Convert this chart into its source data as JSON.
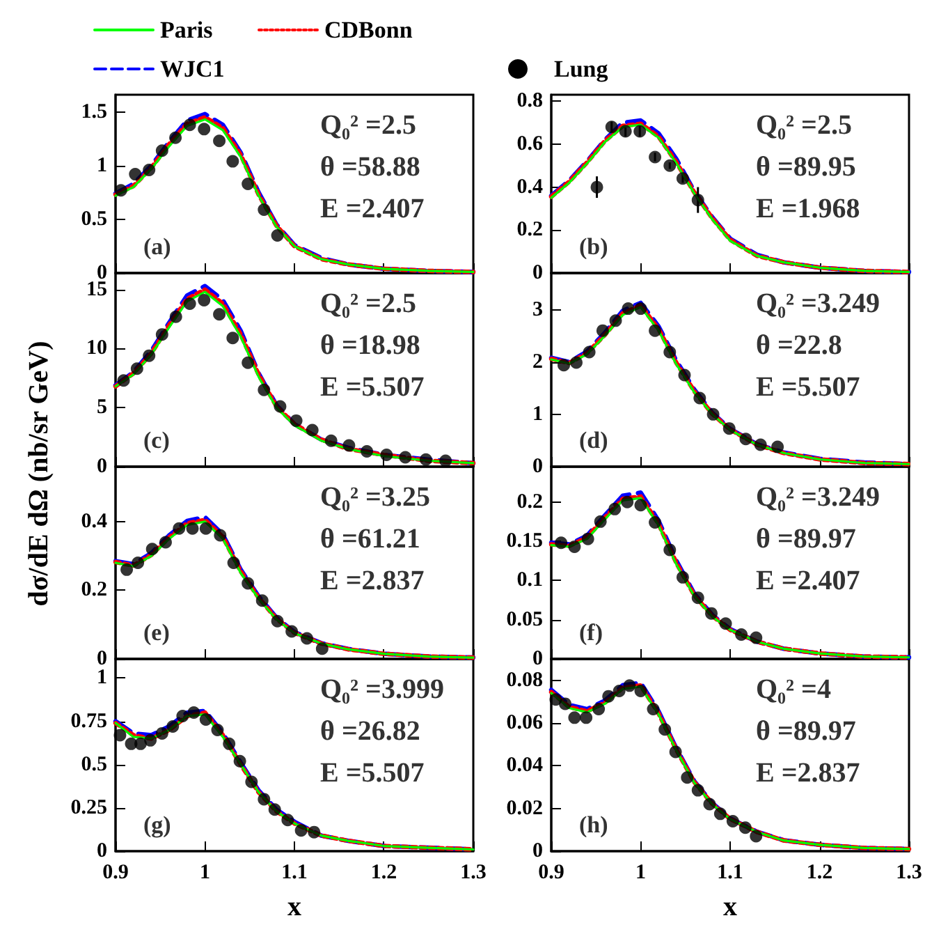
{
  "chart_data": [
    {
      "type": "line",
      "legend": "top",
      "tick_labels": "y",
      "xlim": [
        0.9,
        1.3
      ],
      "xticks": [
        0.9,
        1,
        1.1,
        1.2,
        1.3
      ],
      "ylim": [
        0,
        1.66
      ],
      "yticks": [
        0,
        0.5,
        1,
        1.5
      ],
      "annotations": [
        "(a)",
        "Q₀² =2.5",
        "θ =58.88",
        "E =2.407"
      ],
      "x": [
        0.9,
        0.92,
        0.94,
        0.96,
        0.98,
        1.0,
        1.02,
        1.04,
        1.06,
        1.08,
        1.1,
        1.13,
        1.16,
        1.2,
        1.25,
        1.3
      ],
      "series": [
        {
          "name": "Paris",
          "color": "#00ff00",
          "line_style": "solid",
          "marker": "none",
          "values": [
            0.72,
            0.8,
            0.97,
            1.18,
            1.37,
            1.43,
            1.33,
            1.08,
            0.72,
            0.43,
            0.25,
            0.13,
            0.08,
            0.04,
            0.02,
            0.01
          ]
        },
        {
          "name": "CDBonn",
          "color": "#ff0000",
          "line_style": "dotted",
          "marker": "none",
          "values": [
            0.73,
            0.81,
            0.98,
            1.2,
            1.39,
            1.45,
            1.35,
            1.1,
            0.73,
            0.44,
            0.25,
            0.13,
            0.08,
            0.04,
            0.02,
            0.01
          ]
        },
        {
          "name": "WJC1",
          "color": "#0000ff",
          "line_style": "dashed",
          "marker": "none",
          "values": [
            0.74,
            0.83,
            1.0,
            1.22,
            1.42,
            1.48,
            1.38,
            1.12,
            0.75,
            0.45,
            0.26,
            0.14,
            0.08,
            0.04,
            0.02,
            0.01
          ]
        },
        {
          "name": "Lung",
          "type": "scatter",
          "color": "#000000",
          "marker": "circle",
          "x": [
            0.906,
            0.922,
            0.9375,
            0.952,
            0.967,
            0.983,
            0.999,
            1.016,
            1.031,
            1.048,
            1.066,
            1.081
          ],
          "values": [
            0.77,
            0.92,
            0.96,
            1.14,
            1.26,
            1.38,
            1.34,
            1.23,
            1.04,
            0.83,
            0.59,
            0.35
          ]
        }
      ]
    },
    {
      "type": "line",
      "tick_labels": "y",
      "xlim": [
        0.9,
        1.3
      ],
      "xticks": [
        0.9,
        1,
        1.1,
        1.2,
        1.3
      ],
      "ylim": [
        0,
        0.83
      ],
      "yticks": [
        0,
        0.2,
        0.4,
        0.6,
        0.8
      ],
      "annotations": [
        "(b)",
        "Q₀² =2.5",
        "θ =89.95",
        "E =1.968"
      ],
      "x": [
        0.9,
        0.92,
        0.94,
        0.96,
        0.98,
        1.0,
        1.02,
        1.04,
        1.06,
        1.08,
        1.1,
        1.13,
        1.16,
        1.2,
        1.25,
        1.3
      ],
      "series": [
        {
          "color": "#00ff00",
          "line_style": "solid",
          "marker": "none",
          "values": [
            0.35,
            0.42,
            0.51,
            0.61,
            0.68,
            0.69,
            0.63,
            0.51,
            0.37,
            0.25,
            0.15,
            0.08,
            0.05,
            0.025,
            0.01,
            0.005
          ]
        },
        {
          "color": "#ff0000",
          "line_style": "dotted",
          "marker": "none",
          "values": [
            0.355,
            0.425,
            0.515,
            0.615,
            0.685,
            0.695,
            0.635,
            0.515,
            0.375,
            0.255,
            0.155,
            0.08,
            0.05,
            0.025,
            0.01,
            0.005
          ]
        },
        {
          "color": "#0000ff",
          "line_style": "dashed",
          "marker": "none",
          "values": [
            0.36,
            0.43,
            0.52,
            0.62,
            0.7,
            0.71,
            0.65,
            0.53,
            0.38,
            0.26,
            0.16,
            0.085,
            0.05,
            0.025,
            0.01,
            0.005
          ]
        },
        {
          "type": "scatter",
          "color": "#000000",
          "marker": "circle",
          "x": [
            0.951,
            0.9675,
            0.983,
            0.999,
            1.016,
            1.0325,
            1.047,
            1.064
          ],
          "values": [
            0.4,
            0.68,
            0.66,
            0.66,
            0.54,
            0.5,
            0.44,
            0.34
          ],
          "errors": [
            0.05,
            0.025,
            0.025,
            0.025,
            0.02,
            0.015,
            0.02,
            0.06
          ]
        }
      ]
    },
    {
      "type": "line",
      "tick_labels": "y",
      "xlim": [
        0.9,
        1.3
      ],
      "xticks": [
        0.9,
        1,
        1.1,
        1.2,
        1.3
      ],
      "ylim": [
        0,
        16.4
      ],
      "yticks": [
        0,
        5,
        10,
        15
      ],
      "ylabel": "dσ/dE dΩ (nb/sr GeV)",
      "annotations": [
        "(c)",
        "Q₀² =2.5",
        "θ =18.98",
        "E =5.507"
      ],
      "x": [
        0.9,
        0.92,
        0.94,
        0.96,
        0.98,
        1.0,
        1.02,
        1.04,
        1.06,
        1.08,
        1.1,
        1.13,
        1.16,
        1.2,
        1.25,
        1.3
      ],
      "series": [
        {
          "color": "#00ff00",
          "line_style": "solid",
          "marker": "none",
          "values": [
            6.8,
            7.8,
            9.5,
            11.8,
            14.0,
            14.8,
            13.6,
            11.0,
            7.6,
            5.0,
            3.5,
            2.2,
            1.5,
            0.9,
            0.5,
            0.3
          ]
        },
        {
          "color": "#ff0000",
          "line_style": "dotted",
          "marker": "none",
          "values": [
            6.8,
            7.9,
            9.6,
            12.0,
            14.2,
            15.0,
            13.8,
            11.2,
            7.8,
            5.1,
            3.6,
            2.3,
            1.5,
            1.0,
            0.5,
            0.3
          ]
        },
        {
          "color": "#0000ff",
          "line_style": "dashed",
          "marker": "none",
          "values": [
            6.9,
            8.0,
            9.8,
            12.2,
            14.5,
            15.3,
            14.1,
            11.5,
            7.9,
            5.2,
            3.6,
            2.3,
            1.6,
            1.0,
            0.6,
            0.3
          ]
        },
        {
          "type": "scatter",
          "color": "#000000",
          "marker": "circle",
          "x": [
            0.909,
            0.924,
            0.9375,
            0.952,
            0.9675,
            0.983,
            0.999,
            1.016,
            1.031,
            1.048,
            1.066,
            1.084,
            1.102,
            1.12,
            1.141,
            1.161,
            1.181,
            1.203,
            1.224,
            1.247,
            1.269
          ],
          "values": [
            7.3,
            8.3,
            9.4,
            11.2,
            12.7,
            13.8,
            14.1,
            12.9,
            10.9,
            8.8,
            6.5,
            5.1,
            3.9,
            3.1,
            2.2,
            1.8,
            1.3,
            1.0,
            0.8,
            0.6,
            0.5
          ]
        }
      ]
    },
    {
      "type": "line",
      "tick_labels": "y",
      "xlim": [
        0.9,
        1.3
      ],
      "xticks": [
        0.9,
        1,
        1.1,
        1.2,
        1.3
      ],
      "ylim": [
        0,
        3.7
      ],
      "yticks": [
        0,
        1,
        2,
        3
      ],
      "annotations": [
        "(d)",
        "Q₀² =3.249",
        "θ =22.8",
        "E =5.507"
      ],
      "x": [
        0.9,
        0.92,
        0.94,
        0.96,
        0.98,
        1.0,
        1.02,
        1.04,
        1.06,
        1.08,
        1.1,
        1.13,
        1.16,
        1.2,
        1.25,
        1.3
      ],
      "series": [
        {
          "color": "#00ff00",
          "line_style": "solid",
          "marker": "none",
          "values": [
            2.05,
            1.97,
            2.15,
            2.5,
            2.9,
            3.05,
            2.6,
            1.95,
            1.42,
            1.0,
            0.7,
            0.42,
            0.26,
            0.14,
            0.07,
            0.05
          ]
        },
        {
          "color": "#ff0000",
          "line_style": "dotted",
          "marker": "none",
          "values": [
            2.06,
            1.98,
            2.17,
            2.52,
            2.93,
            3.08,
            2.63,
            1.98,
            1.44,
            1.01,
            0.71,
            0.42,
            0.26,
            0.14,
            0.07,
            0.05
          ]
        },
        {
          "color": "#0000ff",
          "line_style": "dashed",
          "marker": "none",
          "values": [
            2.08,
            2.0,
            2.2,
            2.56,
            2.98,
            3.13,
            2.68,
            2.02,
            1.47,
            1.03,
            0.72,
            0.43,
            0.27,
            0.15,
            0.08,
            0.05
          ]
        },
        {
          "type": "scatter",
          "color": "#000000",
          "marker": "circle",
          "x": [
            0.914,
            0.928,
            0.9425,
            0.9575,
            0.972,
            0.986,
            1.0,
            1.016,
            1.0325,
            1.049,
            1.066,
            1.081,
            1.099,
            1.1175,
            1.134,
            1.153
          ],
          "values": [
            1.94,
            1.99,
            2.19,
            2.6,
            2.79,
            3.02,
            3.02,
            2.6,
            2.19,
            1.75,
            1.31,
            1.0,
            0.73,
            0.53,
            0.42,
            0.38
          ]
        }
      ]
    },
    {
      "type": "line",
      "tick_labels": "y",
      "xlim": [
        0.9,
        1.3
      ],
      "xticks": [
        0.9,
        1,
        1.1,
        1.2,
        1.3
      ],
      "ylim": [
        0,
        0.56
      ],
      "yticks": [
        0,
        0.2,
        0.4
      ],
      "annotations": [
        "(e)",
        "Q₀² =3.25",
        "θ =61.21",
        "E =2.837"
      ],
      "x": [
        0.9,
        0.92,
        0.94,
        0.96,
        0.98,
        1.0,
        1.02,
        1.04,
        1.06,
        1.08,
        1.1,
        1.13,
        1.16,
        1.2,
        1.25,
        1.3
      ],
      "series": [
        {
          "color": "#00ff00",
          "line_style": "solid",
          "marker": "none",
          "values": [
            0.28,
            0.27,
            0.3,
            0.35,
            0.39,
            0.4,
            0.35,
            0.25,
            0.175,
            0.115,
            0.075,
            0.045,
            0.028,
            0.015,
            0.007,
            0.004
          ]
        },
        {
          "color": "#ff0000",
          "line_style": "dotted",
          "marker": "none",
          "values": [
            0.282,
            0.272,
            0.303,
            0.354,
            0.395,
            0.405,
            0.355,
            0.255,
            0.178,
            0.117,
            0.076,
            0.045,
            0.028,
            0.015,
            0.007,
            0.004
          ]
        },
        {
          "color": "#0000ff",
          "line_style": "dashed",
          "marker": "none",
          "values": [
            0.285,
            0.276,
            0.308,
            0.36,
            0.402,
            0.413,
            0.362,
            0.26,
            0.182,
            0.12,
            0.078,
            0.046,
            0.029,
            0.015,
            0.007,
            0.004
          ]
        },
        {
          "type": "scatter",
          "color": "#000000",
          "marker": "circle",
          "x": [
            0.9125,
            0.925,
            0.941,
            0.956,
            0.971,
            0.986,
            1.001,
            1.017,
            1.032,
            1.048,
            1.064,
            1.081,
            1.097,
            1.114,
            1.131
          ],
          "values": [
            0.26,
            0.28,
            0.32,
            0.34,
            0.38,
            0.38,
            0.38,
            0.36,
            0.28,
            0.22,
            0.17,
            0.11,
            0.08,
            0.06,
            0.03
          ]
        }
      ]
    },
    {
      "type": "line",
      "tick_labels": "y",
      "xlim": [
        0.9,
        1.3
      ],
      "xticks": [
        0.9,
        1,
        1.1,
        1.2,
        1.3
      ],
      "ylim": [
        0,
        0.245
      ],
      "yticks": [
        0,
        0.05,
        0.1,
        0.15,
        0.2
      ],
      "annotations": [
        "(f)",
        "Q₀² =3.249",
        "θ =89.97",
        "E =2.407"
      ],
      "x": [
        0.9,
        0.92,
        0.94,
        0.96,
        0.98,
        1.0,
        1.02,
        1.04,
        1.06,
        1.08,
        1.1,
        1.13,
        1.16,
        1.2,
        1.25,
        1.3
      ],
      "series": [
        {
          "color": "#00ff00",
          "line_style": "solid",
          "marker": "none",
          "values": [
            0.145,
            0.143,
            0.153,
            0.178,
            0.202,
            0.205,
            0.17,
            0.12,
            0.08,
            0.054,
            0.037,
            0.022,
            0.013,
            0.007,
            0.003,
            0.002
          ]
        },
        {
          "color": "#ff0000",
          "line_style": "dotted",
          "marker": "none",
          "values": [
            0.146,
            0.144,
            0.155,
            0.18,
            0.204,
            0.207,
            0.172,
            0.122,
            0.081,
            0.055,
            0.037,
            0.022,
            0.013,
            0.007,
            0.003,
            0.002
          ]
        },
        {
          "color": "#0000ff",
          "line_style": "dashed",
          "marker": "none",
          "values": [
            0.148,
            0.146,
            0.157,
            0.183,
            0.208,
            0.212,
            0.176,
            0.125,
            0.083,
            0.056,
            0.038,
            0.022,
            0.013,
            0.007,
            0.003,
            0.002
          ]
        },
        {
          "type": "scatter",
          "color": "#000000",
          "marker": "circle",
          "x": [
            0.911,
            0.926,
            0.941,
            0.955,
            0.971,
            0.985,
            1.0,
            1.016,
            1.0325,
            1.047,
            1.064,
            1.079,
            1.095,
            1.1125,
            1.129
          ],
          "values": [
            0.148,
            0.143,
            0.153,
            0.175,
            0.191,
            0.2,
            0.196,
            0.174,
            0.139,
            0.104,
            0.078,
            0.058,
            0.045,
            0.031,
            0.027
          ]
        }
      ]
    },
    {
      "type": "line",
      "xlim": [
        0.9,
        1.3
      ],
      "xticks": [
        0.9,
        1,
        1.1,
        1.2,
        1.3
      ],
      "ylim": [
        0,
        1.11
      ],
      "yticks": [
        0,
        0.25,
        0.5,
        0.75,
        1
      ],
      "xlabel": "x",
      "annotations": [
        "(g)",
        "Q₀² =3.999",
        "θ =26.82",
        "E =5.507"
      ],
      "x": [
        0.9,
        0.92,
        0.94,
        0.96,
        0.98,
        1.0,
        1.02,
        1.04,
        1.06,
        1.08,
        1.1,
        1.13,
        1.16,
        1.2,
        1.25,
        1.3
      ],
      "series": [
        {
          "color": "#00ff00",
          "line_style": "solid",
          "marker": "none",
          "values": [
            0.74,
            0.66,
            0.65,
            0.7,
            0.78,
            0.79,
            0.66,
            0.5,
            0.34,
            0.23,
            0.16,
            0.09,
            0.06,
            0.03,
            0.02,
            0.01
          ]
        },
        {
          "color": "#ff0000",
          "line_style": "dotted",
          "marker": "none",
          "values": [
            0.74,
            0.67,
            0.65,
            0.7,
            0.78,
            0.8,
            0.67,
            0.5,
            0.34,
            0.23,
            0.16,
            0.09,
            0.06,
            0.03,
            0.02,
            0.01
          ]
        },
        {
          "color": "#0000ff",
          "line_style": "dashed",
          "marker": "none",
          "values": [
            0.75,
            0.68,
            0.67,
            0.72,
            0.8,
            0.81,
            0.68,
            0.51,
            0.35,
            0.24,
            0.17,
            0.09,
            0.06,
            0.03,
            0.02,
            0.01
          ]
        },
        {
          "type": "scatter",
          "color": "#000000",
          "marker": "circle",
          "x": [
            0.905,
            0.9175,
            0.928,
            0.939,
            0.952,
            0.964,
            0.975,
            0.9875,
            1.001,
            1.014,
            1.027,
            1.039,
            1.052,
            1.066,
            1.078,
            1.0925,
            1.1075,
            1.122
          ],
          "values": [
            0.67,
            0.62,
            0.62,
            0.64,
            0.68,
            0.72,
            0.78,
            0.8,
            0.76,
            0.7,
            0.62,
            0.52,
            0.4,
            0.3,
            0.24,
            0.18,
            0.12,
            0.11
          ]
        }
      ]
    },
    {
      "type": "line",
      "xlim": [
        0.9,
        1.3
      ],
      "xticks": [
        0.9,
        1,
        1.1,
        1.2,
        1.3
      ],
      "ylim": [
        0,
        0.09
      ],
      "yticks": [
        0,
        0.02,
        0.04,
        0.06,
        0.08
      ],
      "xlabel": "x",
      "annotations": [
        "(h)",
        "Q₀² =4",
        "θ =89.97",
        "E =2.837"
      ],
      "x": [
        0.9,
        0.92,
        0.94,
        0.96,
        0.98,
        1.0,
        1.02,
        1.04,
        1.06,
        1.08,
        1.1,
        1.13,
        1.16,
        1.2,
        1.25,
        1.3
      ],
      "series": [
        {
          "color": "#00ff00",
          "line_style": "solid",
          "marker": "none",
          "values": [
            0.074,
            0.067,
            0.065,
            0.069,
            0.076,
            0.077,
            0.064,
            0.047,
            0.032,
            0.022,
            0.015,
            0.009,
            0.005,
            0.003,
            0.0015,
            0.001
          ]
        },
        {
          "color": "#ff0000",
          "line_style": "dotted",
          "marker": "none",
          "values": [
            0.0745,
            0.0675,
            0.0655,
            0.0695,
            0.0765,
            0.0776,
            0.0645,
            0.0474,
            0.0323,
            0.0222,
            0.0151,
            0.009,
            0.005,
            0.003,
            0.0015,
            0.001
          ]
        },
        {
          "color": "#0000ff",
          "line_style": "dashed",
          "marker": "none",
          "values": [
            0.0755,
            0.0685,
            0.0665,
            0.0705,
            0.0777,
            0.0788,
            0.0655,
            0.048,
            0.0327,
            0.0225,
            0.0153,
            0.0091,
            0.0051,
            0.003,
            0.0015,
            0.001
          ]
        },
        {
          "type": "scatter",
          "color": "#000000",
          "marker": "circle",
          "x": [
            0.905,
            0.9156,
            0.926,
            0.939,
            0.953,
            0.964,
            0.976,
            0.9875,
            1.0,
            1.014,
            1.027,
            1.039,
            1.052,
            1.064,
            1.077,
            1.089,
            1.103,
            1.117,
            1.129
          ],
          "values": [
            0.071,
            0.069,
            0.0625,
            0.0625,
            0.0665,
            0.0725,
            0.075,
            0.0775,
            0.075,
            0.0665,
            0.057,
            0.0465,
            0.0345,
            0.0285,
            0.022,
            0.0175,
            0.014,
            0.011,
            0.007
          ]
        }
      ]
    }
  ]
}
